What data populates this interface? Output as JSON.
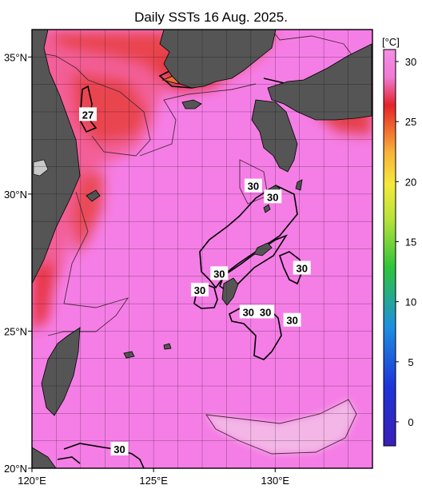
{
  "title": "Daily SSTs 16 Aug. 2025.",
  "map": {
    "lon_range": [
      120,
      134
    ],
    "lat_range": [
      20,
      36
    ],
    "lon_ticks": [
      {
        "value": 120,
        "label": "120°E"
      },
      {
        "value": 125,
        "label": "125°E"
      },
      {
        "value": 130,
        "label": "130°E"
      }
    ],
    "lat_ticks": [
      {
        "value": 35,
        "label": "35°N"
      },
      {
        "value": 30,
        "label": "30°N"
      },
      {
        "value": 25,
        "label": "25°N"
      },
      {
        "value": 20,
        "label": "20°N"
      }
    ],
    "grid": true,
    "grid_step_deg": 1,
    "colors": {
      "sea_warm": "#f57ee6",
      "sea_hot": "#ea3a4b",
      "sea_pale": "#f3b6e6",
      "land": "#555555"
    }
  },
  "contour_labels": [
    {
      "text": "27",
      "lon": 122.3,
      "lat": 32.9
    },
    {
      "text": "30",
      "lon": 129.1,
      "lat": 30.3
    },
    {
      "text": "30",
      "lon": 129.9,
      "lat": 29.9
    },
    {
      "text": "30",
      "lon": 127.7,
      "lat": 27.1
    },
    {
      "text": "30",
      "lon": 126.9,
      "lat": 26.5
    },
    {
      "text": "30",
      "lon": 131.1,
      "lat": 27.3
    },
    {
      "text": "30",
      "lon": 128.9,
      "lat": 25.7
    },
    {
      "text": "30",
      "lon": 129.6,
      "lat": 25.7
    },
    {
      "text": "30",
      "lon": 130.7,
      "lat": 25.4
    },
    {
      "text": "30",
      "lon": 123.6,
      "lat": 20.7
    }
  ],
  "colorbar": {
    "unit": "[°C]",
    "range": [
      -2,
      31
    ],
    "ticks": [
      {
        "value": 30,
        "label": "30"
      },
      {
        "value": 25,
        "label": "25"
      },
      {
        "value": 20,
        "label": "20"
      },
      {
        "value": 15,
        "label": "15"
      },
      {
        "value": 10,
        "label": "10"
      },
      {
        "value": 5,
        "label": "5"
      },
      {
        "value": 0,
        "label": "0"
      }
    ]
  }
}
